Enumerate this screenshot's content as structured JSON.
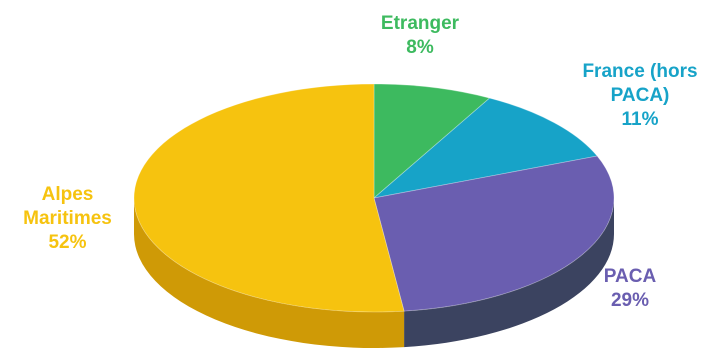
{
  "chart_data": {
    "type": "pie",
    "style": "3d",
    "slices": [
      {
        "label": "Etranger",
        "value": 8,
        "percent_label": "8%",
        "color": "#3dba5f",
        "side_color": "#2a8a45",
        "label_color": "#3dba5f"
      },
      {
        "label": "France (hors PACA)",
        "value": 11,
        "percent_label": "11%",
        "color": "#17a3c8",
        "side_color": "#0f7392",
        "label_color": "#17a3c8"
      },
      {
        "label": "PACA",
        "value": 29,
        "percent_label": "29%",
        "color": "#6a5eb0",
        "side_color": "#3b4360",
        "label_color": "#6a5eb0"
      },
      {
        "label": "Alpes Maritimes",
        "value": 52,
        "percent_label": "52%",
        "color": "#f6c30f",
        "side_color": "#cf9a06",
        "label_color": "#f6c30f"
      }
    ]
  },
  "labels": {
    "etranger": {
      "line1": "Etranger",
      "pct": "8%"
    },
    "france": {
      "line1": "France (hors",
      "line2": "PACA)",
      "pct": "11%"
    },
    "paca": {
      "line1": "PACA",
      "pct": "29%"
    },
    "alpes": {
      "line1": "Alpes",
      "line2": "Maritimes",
      "pct": "52%"
    }
  }
}
